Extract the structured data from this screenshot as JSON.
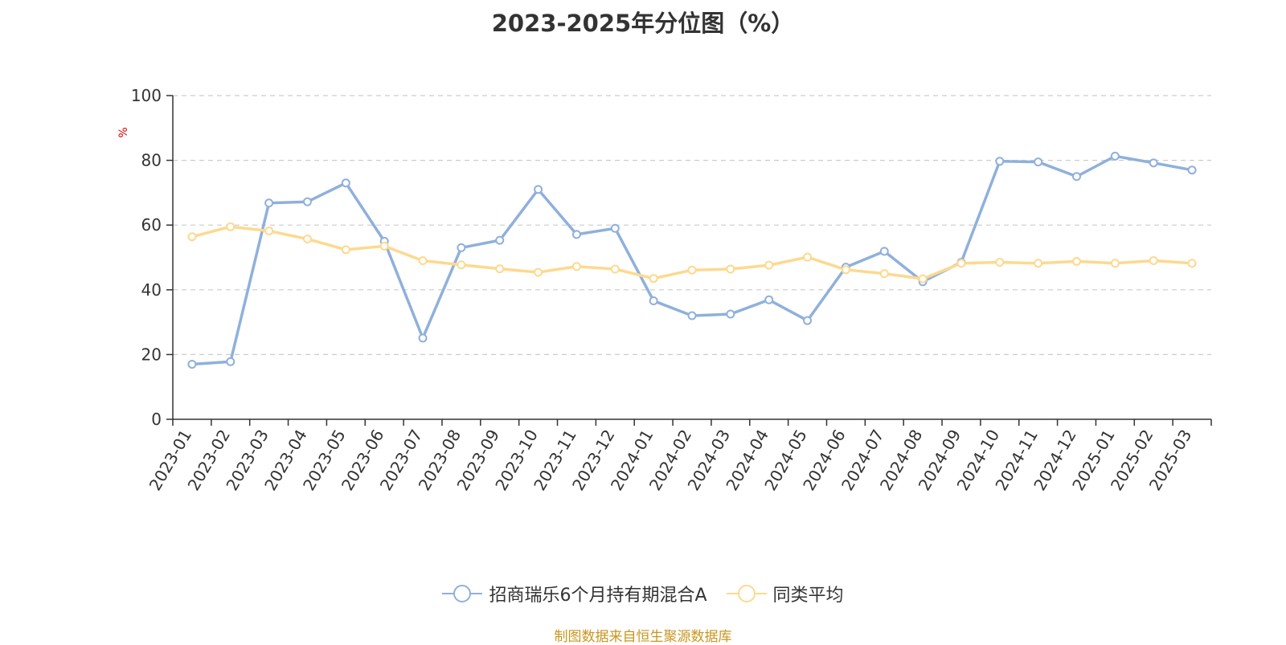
{
  "title": "2023-2025年分位图（%）",
  "source": "制图数据来自恒生聚源数据库",
  "colors": {
    "fund": "#8fb0dc",
    "avg": "#fdd98f",
    "grid": "#cccccc",
    "axis": "#333333",
    "unit": "#e00000",
    "source": "#c8961e"
  },
  "chart_data": {
    "type": "line",
    "title": "2023-2025年分位图（%）",
    "ylabel": "%",
    "ylim": [
      0,
      100
    ],
    "yticks": [
      "0",
      "20",
      "40",
      "60",
      "80",
      "100"
    ],
    "grid": true,
    "legend_position": "bottom",
    "categories": [
      "2023-01",
      "2023-02",
      "2023-03",
      "2023-04",
      "2023-05",
      "2023-06",
      "2023-07",
      "2023-08",
      "2023-09",
      "2023-10",
      "2023-11",
      "2023-12",
      "2024-01",
      "2024-02",
      "2024-03",
      "2024-04",
      "2024-05",
      "2024-06",
      "2024-07",
      "2024-08",
      "2024-09",
      "2024-10",
      "2024-11",
      "2024-12",
      "2025-01",
      "2025-02",
      "2025-03"
    ],
    "series": [
      {
        "name": "招商瑞乐6个月持有期混合A",
        "color": "#8fb0dc",
        "values": [
          17.0,
          17.8,
          66.8,
          67.2,
          73.0,
          55.0,
          25.1,
          53.0,
          55.3,
          71.0,
          57.1,
          59.0,
          36.6,
          32.0,
          32.5,
          36.9,
          30.5,
          47.0,
          51.9,
          42.5,
          48.5,
          79.7,
          79.5,
          75.0,
          81.3,
          79.2,
          77.0
        ]
      },
      {
        "name": "同类平均",
        "color": "#fdd98f",
        "values": [
          56.4,
          59.5,
          58.2,
          55.7,
          52.4,
          53.5,
          49.0,
          47.7,
          46.5,
          45.4,
          47.2,
          46.4,
          43.5,
          46.1,
          46.4,
          47.6,
          50.1,
          46.2,
          45.0,
          43.4,
          48.2,
          48.5,
          48.2,
          48.8,
          48.2,
          49.0,
          48.2
        ]
      }
    ]
  }
}
